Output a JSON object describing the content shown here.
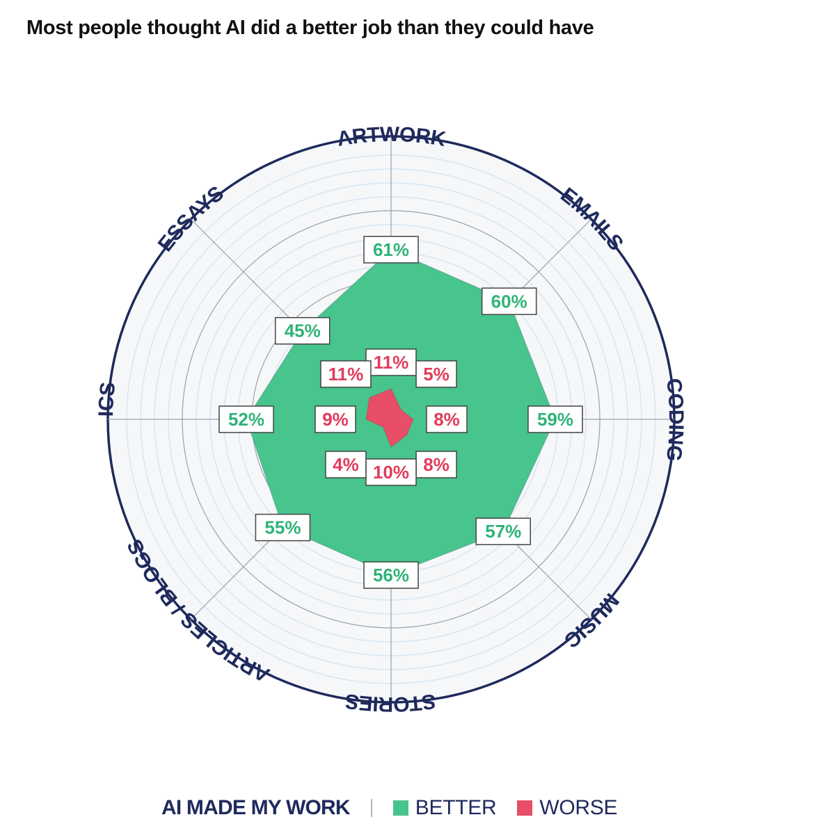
{
  "title": "Most people thought AI did a better job than they could have",
  "chart_data": {
    "type": "radar",
    "title": "Most people thought AI did a better job than they could have",
    "categories": [
      "ARTWORK",
      "EMAILS",
      "CODING",
      "MUSIC",
      "STORIES",
      "ARTICLES / BLOGS",
      "LYRICS",
      "ESSAYS"
    ],
    "series": [
      {
        "name": "BETTER",
        "color": "#48c48d",
        "values": [
          61,
          60,
          59,
          57,
          56,
          55,
          52,
          45
        ]
      },
      {
        "name": "WORSE",
        "color": "#e84e68",
        "values": [
          11,
          5,
          8,
          8,
          10,
          4,
          9,
          11
        ]
      }
    ],
    "value_labels": {
      "BETTER": [
        "61%",
        "60%",
        "59%",
        "57%",
        "56%",
        "55%",
        "52%",
        "45%"
      ],
      "WORSE": [
        "11%",
        "5%",
        "8%",
        "8%",
        "10%",
        "4%",
        "9%",
        "11%"
      ]
    },
    "rlim": [
      0,
      100
    ],
    "grid": true,
    "legend": {
      "title": "AI MADE MY WORK",
      "items": [
        "BETTER",
        "WORSE"
      ],
      "position": "bottom-center"
    }
  },
  "colors": {
    "navy": "#1f2a5c",
    "better": "#48c48d",
    "better_text": "#2fb378",
    "worse": "#e84e68",
    "worse_text": "#e23b5a"
  }
}
